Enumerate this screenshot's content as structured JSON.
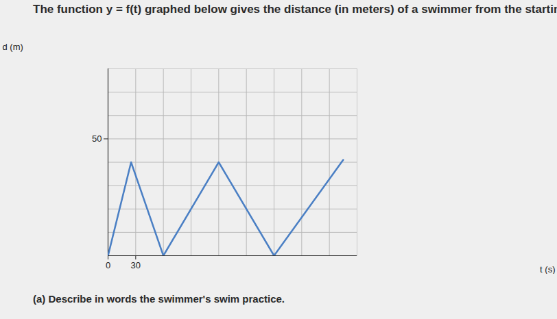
{
  "chart_data": {
    "type": "line",
    "title": "The function y = f(t) graphed below gives the distance (in meters) of a swimmer from the starting",
    "caption": "(a) Describe in words the swimmer's swim practice.",
    "x_label": "t (s)",
    "y_label": "d (m)",
    "x": [
      0,
      25,
      60,
      120,
      180,
      255
    ],
    "values": [
      0,
      40,
      0,
      40,
      0,
      41
    ],
    "color": "#4a7fc4",
    "xlim": [
      0,
      270
    ],
    "xticks": [
      0,
      30
    ],
    "ylim": [
      0,
      80
    ],
    "yticks": [
      50
    ],
    "grid": true
  }
}
